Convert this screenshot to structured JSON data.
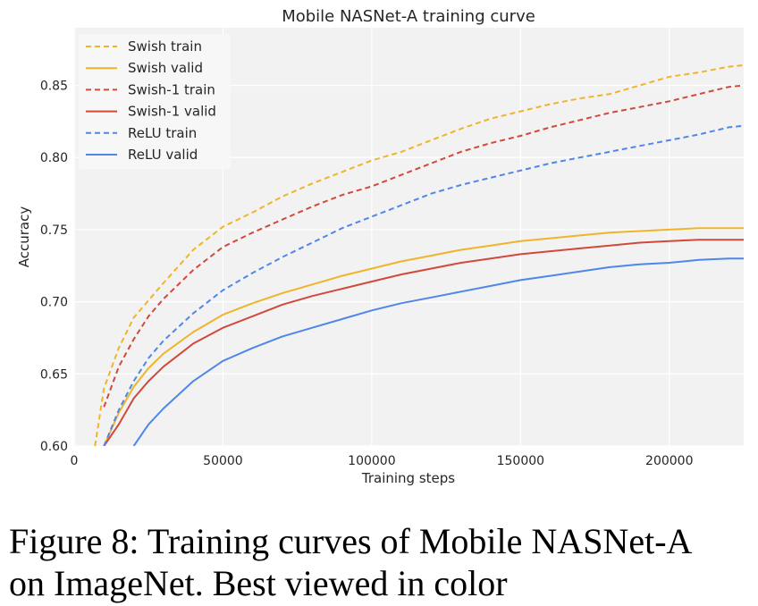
{
  "chart_data": {
    "type": "line",
    "title": "Mobile NASNet-A training curve",
    "xlabel": "Training steps",
    "ylabel": "Accuracy",
    "xlim": [
      0,
      225000
    ],
    "ylim": [
      0.6,
      0.89
    ],
    "xticks": [
      "0",
      "50000",
      "100000",
      "150000",
      "200000"
    ],
    "xtick_values": [
      0,
      50000,
      100000,
      150000,
      200000
    ],
    "yticks": [
      "0.60",
      "0.65",
      "0.70",
      "0.75",
      "0.80",
      "0.85"
    ],
    "ytick_values": [
      0.6,
      0.65,
      0.7,
      0.75,
      0.8,
      0.85
    ],
    "grid": true,
    "legend_position": "top-left",
    "x": [
      7000,
      10000,
      15000,
      20000,
      25000,
      30000,
      40000,
      50000,
      60000,
      70000,
      80000,
      90000,
      100000,
      110000,
      120000,
      130000,
      140000,
      150000,
      160000,
      170000,
      180000,
      190000,
      200000,
      210000,
      220000,
      225000
    ],
    "series": [
      {
        "name": "Swish train",
        "color": "#f0b429",
        "dash": true,
        "values": [
          0.6,
          0.64,
          0.668,
          0.689,
          0.701,
          0.713,
          0.736,
          0.752,
          0.762,
          0.773,
          0.782,
          0.79,
          0.798,
          0.804,
          0.812,
          0.82,
          0.827,
          0.832,
          0.837,
          0.841,
          0.844,
          0.85,
          0.856,
          0.859,
          0.863,
          0.864
        ]
      },
      {
        "name": "Swish valid",
        "color": "#f0b429",
        "dash": false,
        "values": [
          null,
          0.6,
          0.623,
          0.641,
          0.654,
          0.664,
          0.679,
          0.691,
          0.699,
          0.706,
          0.712,
          0.718,
          0.723,
          0.728,
          0.732,
          0.736,
          0.739,
          0.742,
          0.744,
          0.746,
          0.748,
          0.749,
          0.75,
          0.751,
          0.751,
          0.751
        ]
      },
      {
        "name": "Swish-1 train",
        "color": "#d1493b",
        "dash": true,
        "values": [
          null,
          0.627,
          0.655,
          0.674,
          0.69,
          0.702,
          0.722,
          0.738,
          0.748,
          0.757,
          0.766,
          0.774,
          0.78,
          0.788,
          0.796,
          0.804,
          0.81,
          0.815,
          0.821,
          0.826,
          0.831,
          0.835,
          0.839,
          0.844,
          0.849,
          0.85
        ]
      },
      {
        "name": "Swish-1 valid",
        "color": "#d1493b",
        "dash": false,
        "values": [
          null,
          0.6,
          0.615,
          0.633,
          0.645,
          0.655,
          0.671,
          0.682,
          0.69,
          0.698,
          0.704,
          0.709,
          0.714,
          0.719,
          0.723,
          0.727,
          0.73,
          0.733,
          0.735,
          0.737,
          0.739,
          0.741,
          0.742,
          0.743,
          0.743,
          0.743
        ]
      },
      {
        "name": "ReLU train",
        "color": "#4f86e8",
        "dash": true,
        "values": [
          null,
          0.6,
          0.625,
          0.645,
          0.661,
          0.673,
          0.692,
          0.708,
          0.72,
          0.731,
          0.741,
          0.751,
          0.759,
          0.767,
          0.775,
          0.781,
          0.786,
          0.791,
          0.796,
          0.8,
          0.804,
          0.808,
          0.812,
          0.816,
          0.821,
          0.822
        ]
      },
      {
        "name": "ReLU valid",
        "color": "#4f86e8",
        "dash": false,
        "values": [
          null,
          null,
          null,
          0.6,
          0.615,
          0.626,
          0.645,
          0.659,
          0.668,
          0.676,
          0.682,
          0.688,
          0.694,
          0.699,
          0.703,
          0.707,
          0.711,
          0.715,
          0.718,
          0.721,
          0.724,
          0.726,
          0.727,
          0.729,
          0.73,
          0.73
        ]
      }
    ]
  },
  "caption": {
    "line1": "Figure 8: Training curves of Mobile NASNet-A",
    "line2": "on ImageNet. Best viewed in color"
  }
}
